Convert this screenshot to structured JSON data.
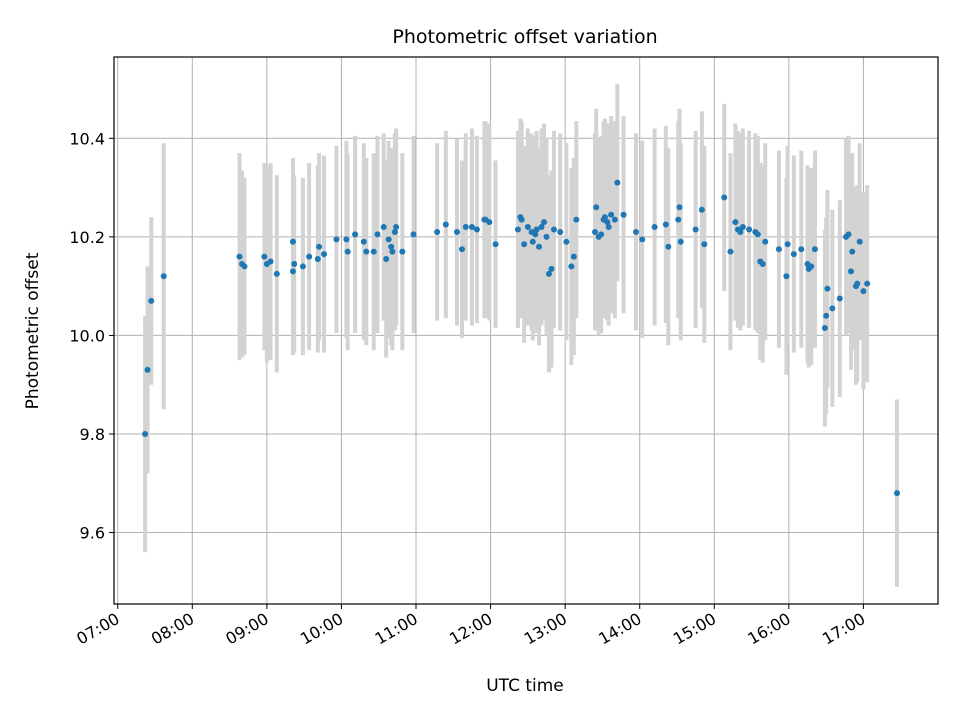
{
  "chart_data": {
    "type": "scatter",
    "title": "Photometric offset variation",
    "xlabel": "UTC time",
    "ylabel": "Photometric offset",
    "x_tick_labels": [
      "07:00",
      "08:00",
      "09:00",
      "10:00",
      "11:00",
      "12:00",
      "13:00",
      "14:00",
      "15:00",
      "16:00",
      "17:00"
    ],
    "y_tick_labels": [
      "9.6",
      "9.8",
      "10.0",
      "10.2",
      "10.4"
    ],
    "y_ticks": [
      9.6,
      9.8,
      10.0,
      10.2,
      10.4
    ],
    "xlim": [
      "06:57",
      "18:00"
    ],
    "ylim": [
      9.455,
      10.565
    ],
    "grid": true,
    "point_color": "#1f77b4",
    "errorbar_color": "#d3d3d3",
    "points": [
      [
        "07:22",
        9.8,
        0.24
      ],
      [
        "07:24",
        9.93,
        0.21
      ],
      [
        "07:27",
        10.07,
        0.17
      ],
      [
        "07:37",
        10.12,
        0.27
      ],
      [
        "08:38",
        10.16,
        0.21
      ],
      [
        "08:40",
        10.145,
        0.19
      ],
      [
        "08:42",
        10.14,
        0.18
      ],
      [
        "08:58",
        10.16,
        0.19
      ],
      [
        "09:00",
        10.145,
        0.2
      ],
      [
        "09:03",
        10.15,
        0.2
      ],
      [
        "09:08",
        10.125,
        0.2
      ],
      [
        "09:21",
        10.13,
        0.17
      ],
      [
        "09:21",
        10.19,
        0.17
      ],
      [
        "09:22",
        10.145,
        0.18
      ],
      [
        "09:29",
        10.14,
        0.18
      ],
      [
        "09:34",
        10.16,
        0.19
      ],
      [
        "09:41",
        10.155,
        0.19
      ],
      [
        "09:42",
        10.18,
        0.19
      ],
      [
        "09:46",
        10.165,
        0.2
      ],
      [
        "09:56",
        10.195,
        0.19
      ],
      [
        "10:04",
        10.195,
        0.2
      ],
      [
        "10:05",
        10.17,
        0.2
      ],
      [
        "10:11",
        10.205,
        0.2
      ],
      [
        "10:18",
        10.19,
        0.2
      ],
      [
        "10:20",
        10.17,
        0.19
      ],
      [
        "10:26",
        10.17,
        0.2
      ],
      [
        "10:29",
        10.205,
        0.2
      ],
      [
        "10:34",
        10.22,
        0.19
      ],
      [
        "10:36",
        10.155,
        0.2
      ],
      [
        "10:38",
        10.195,
        0.2
      ],
      [
        "10:40",
        10.18,
        0.2
      ],
      [
        "10:41",
        10.17,
        0.2
      ],
      [
        "10:43",
        10.21,
        0.2
      ],
      [
        "10:44",
        10.22,
        0.2
      ],
      [
        "10:49",
        10.17,
        0.2
      ],
      [
        "10:58",
        10.205,
        0.2
      ],
      [
        "11:17",
        10.21,
        0.18
      ],
      [
        "11:24",
        10.225,
        0.19
      ],
      [
        "11:33",
        10.21,
        0.19
      ],
      [
        "11:37",
        10.175,
        0.18
      ],
      [
        "11:40",
        10.22,
        0.19
      ],
      [
        "11:45",
        10.22,
        0.2
      ],
      [
        "11:49",
        10.215,
        0.19
      ],
      [
        "11:55",
        10.235,
        0.2
      ],
      [
        "11:56",
        10.235,
        0.2
      ],
      [
        "11:59",
        10.23,
        0.2
      ],
      [
        "12:04",
        10.185,
        0.17
      ],
      [
        "12:22",
        10.215,
        0.2
      ],
      [
        "12:24",
        10.24,
        0.2
      ],
      [
        "12:25",
        10.235,
        0.2
      ],
      [
        "12:27",
        10.185,
        0.2
      ],
      [
        "12:30",
        10.22,
        0.2
      ],
      [
        "12:33",
        10.21,
        0.2
      ],
      [
        "12:34",
        10.19,
        0.2
      ],
      [
        "12:36",
        10.205,
        0.2
      ],
      [
        "12:37",
        10.215,
        0.2
      ],
      [
        "12:39",
        10.18,
        0.2
      ],
      [
        "12:41",
        10.22,
        0.2
      ],
      [
        "12:43",
        10.23,
        0.2
      ],
      [
        "12:45",
        10.2,
        0.2
      ],
      [
        "12:47",
        10.125,
        0.2
      ],
      [
        "12:49",
        10.135,
        0.2
      ],
      [
        "12:51",
        10.215,
        0.2
      ],
      [
        "12:56",
        10.21,
        0.2
      ],
      [
        "13:01",
        10.19,
        0.2
      ],
      [
        "13:05",
        10.14,
        0.2
      ],
      [
        "13:07",
        10.16,
        0.2
      ],
      [
        "13:09",
        10.235,
        0.2
      ],
      [
        "13:24",
        10.21,
        0.2
      ],
      [
        "13:25",
        10.26,
        0.2
      ],
      [
        "13:27",
        10.2,
        0.2
      ],
      [
        "13:29",
        10.205,
        0.2
      ],
      [
        "13:31",
        10.235,
        0.2
      ],
      [
        "13:32",
        10.24,
        0.2
      ],
      [
        "13:34",
        10.23,
        0.2
      ],
      [
        "13:35",
        10.22,
        0.2
      ],
      [
        "13:37",
        10.245,
        0.2
      ],
      [
        "13:40",
        10.235,
        0.2
      ],
      [
        "13:42",
        10.31,
        0.2
      ],
      [
        "13:47",
        10.245,
        0.2
      ],
      [
        "13:57",
        10.21,
        0.2
      ],
      [
        "14:02",
        10.195,
        0.2
      ],
      [
        "14:12",
        10.22,
        0.2
      ],
      [
        "14:21",
        10.225,
        0.2
      ],
      [
        "14:23",
        10.18,
        0.2
      ],
      [
        "14:31",
        10.235,
        0.2
      ],
      [
        "14:32",
        10.26,
        0.2
      ],
      [
        "14:33",
        10.19,
        0.2
      ],
      [
        "14:45",
        10.215,
        0.2
      ],
      [
        "14:50",
        10.255,
        0.2
      ],
      [
        "14:52",
        10.185,
        0.2
      ],
      [
        "15:08",
        10.28,
        0.19
      ],
      [
        "15:13",
        10.17,
        0.2
      ],
      [
        "15:17",
        10.23,
        0.2
      ],
      [
        "15:19",
        10.215,
        0.2
      ],
      [
        "15:21",
        10.21,
        0.2
      ],
      [
        "15:23",
        10.22,
        0.2
      ],
      [
        "15:28",
        10.215,
        0.2
      ],
      [
        "15:33",
        10.21,
        0.2
      ],
      [
        "15:35",
        10.205,
        0.2
      ],
      [
        "15:37",
        10.15,
        0.2
      ],
      [
        "15:39",
        10.145,
        0.2
      ],
      [
        "15:41",
        10.19,
        0.2
      ],
      [
        "15:52",
        10.175,
        0.2
      ],
      [
        "15:58",
        10.12,
        0.2
      ],
      [
        "15:59",
        10.185,
        0.2
      ],
      [
        "16:04",
        10.165,
        0.2
      ],
      [
        "16:10",
        10.175,
        0.2
      ],
      [
        "16:15",
        10.145,
        0.2
      ],
      [
        "16:16",
        10.135,
        0.2
      ],
      [
        "16:18",
        10.14,
        0.2
      ],
      [
        "16:21",
        10.175,
        0.2
      ],
      [
        "16:29",
        10.015,
        0.2
      ],
      [
        "16:30",
        10.04,
        0.2
      ],
      [
        "16:31",
        10.095,
        0.2
      ],
      [
        "16:35",
        10.055,
        0.2
      ],
      [
        "16:41",
        10.075,
        0.2
      ],
      [
        "16:46",
        10.2,
        0.2
      ],
      [
        "16:48",
        10.205,
        0.2
      ],
      [
        "16:50",
        10.13,
        0.2
      ],
      [
        "16:51",
        10.17,
        0.2
      ],
      [
        "16:54",
        10.1,
        0.2
      ],
      [
        "16:55",
        10.105,
        0.2
      ],
      [
        "16:57",
        10.19,
        0.2
      ],
      [
        "17:00",
        10.09,
        0.2
      ],
      [
        "17:03",
        10.105,
        0.2
      ],
      [
        "17:27",
        9.68,
        0.19
      ]
    ]
  }
}
